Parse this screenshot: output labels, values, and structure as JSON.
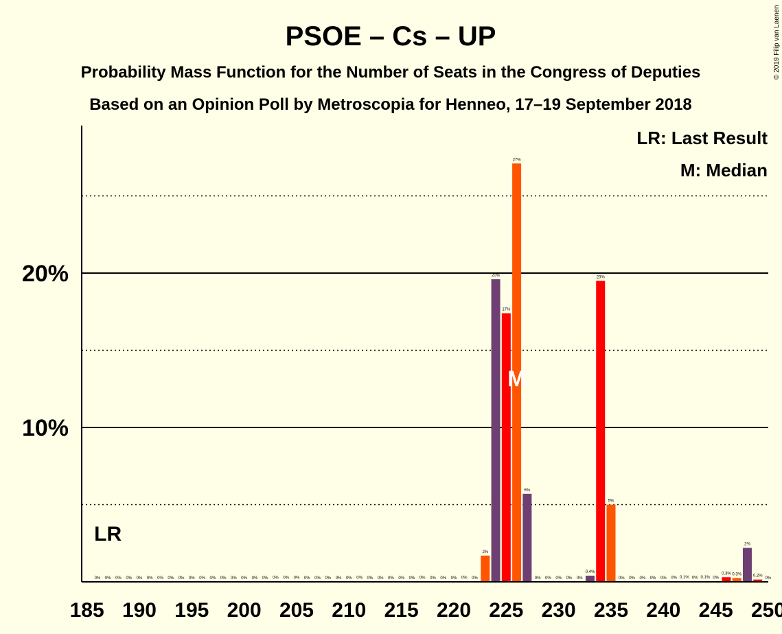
{
  "chart_data": {
    "type": "bar",
    "title": "PSOE – Cs – UP",
    "subtitle1": "Probability Mass Function for the Number of Seats in the Congress of Deputies",
    "subtitle2": "Based on an Opinion Poll by Metroscopia for Henneo, 17–19 September 2018",
    "copyright": "© 2019 Filip van Laenen",
    "legend": {
      "last_result": "LR: Last Result",
      "median": "M: Median"
    },
    "last_result_label": "LR",
    "last_result_seat": 187,
    "median_label": "M",
    "median_seat": 226,
    "xlim": [
      185,
      250
    ],
    "xticks": [
      185,
      190,
      195,
      200,
      205,
      210,
      215,
      220,
      225,
      230,
      235,
      240,
      245,
      250
    ],
    "ylim": [
      0,
      28
    ],
    "yticks": [
      {
        "value": 10,
        "label": "10%"
      },
      {
        "value": 20,
        "label": "20%"
      }
    ],
    "dotted_gridlines": [
      5,
      15,
      25
    ],
    "colors": {
      "psoe": "#FF0000",
      "cs": "#FF5500",
      "up": "#6E3F73",
      "background": "#FFFEE6"
    },
    "bars": [
      {
        "seat": 186,
        "value": 0,
        "label": "0%",
        "party": "psoe"
      },
      {
        "seat": 187,
        "value": 0,
        "label": "0%",
        "party": "cs"
      },
      {
        "seat": 188,
        "value": 0,
        "label": "0%",
        "party": "up"
      },
      {
        "seat": 189,
        "value": 0,
        "label": "0%",
        "party": "psoe"
      },
      {
        "seat": 190,
        "value": 0,
        "label": "0%",
        "party": "cs"
      },
      {
        "seat": 191,
        "value": 0,
        "label": "0%",
        "party": "up"
      },
      {
        "seat": 192,
        "value": 0,
        "label": "0%",
        "party": "psoe"
      },
      {
        "seat": 193,
        "value": 0,
        "label": "0%",
        "party": "cs"
      },
      {
        "seat": 194,
        "value": 0,
        "label": "0%",
        "party": "up"
      },
      {
        "seat": 195,
        "value": 0,
        "label": "0%",
        "party": "psoe"
      },
      {
        "seat": 196,
        "value": 0,
        "label": "0%",
        "party": "cs"
      },
      {
        "seat": 197,
        "value": 0,
        "label": "0%",
        "party": "up"
      },
      {
        "seat": 198,
        "value": 0,
        "label": "0%",
        "party": "psoe"
      },
      {
        "seat": 199,
        "value": 0,
        "label": "0%",
        "party": "cs"
      },
      {
        "seat": 200,
        "value": 0,
        "label": "0%",
        "party": "up"
      },
      {
        "seat": 201,
        "value": 0,
        "label": "0%",
        "party": "psoe"
      },
      {
        "seat": 202,
        "value": 0,
        "label": "0%",
        "party": "cs"
      },
      {
        "seat": 203,
        "value": 0.02,
        "label": "0%",
        "party": "up"
      },
      {
        "seat": 204,
        "value": 0.02,
        "label": "0%",
        "party": "psoe"
      },
      {
        "seat": 205,
        "value": 0.02,
        "label": "0%",
        "party": "cs"
      },
      {
        "seat": 206,
        "value": 0,
        "label": "0%",
        "party": "up"
      },
      {
        "seat": 207,
        "value": 0,
        "label": "0%",
        "party": "psoe"
      },
      {
        "seat": 208,
        "value": 0,
        "label": "0%",
        "party": "cs"
      },
      {
        "seat": 209,
        "value": 0,
        "label": "0%",
        "party": "up"
      },
      {
        "seat": 210,
        "value": 0,
        "label": "0%",
        "party": "psoe"
      },
      {
        "seat": 211,
        "value": 0.02,
        "label": "0%",
        "party": "cs"
      },
      {
        "seat": 212,
        "value": 0,
        "label": "0%",
        "party": "up"
      },
      {
        "seat": 213,
        "value": 0,
        "label": "0%",
        "party": "psoe"
      },
      {
        "seat": 214,
        "value": 0,
        "label": "0%",
        "party": "cs"
      },
      {
        "seat": 215,
        "value": 0,
        "label": "0%",
        "party": "up"
      },
      {
        "seat": 216,
        "value": 0,
        "label": "0%",
        "party": "psoe"
      },
      {
        "seat": 217,
        "value": 0.02,
        "label": "0%",
        "party": "cs"
      },
      {
        "seat": 218,
        "value": 0,
        "label": "0%",
        "party": "up"
      },
      {
        "seat": 219,
        "value": 0,
        "label": "0%",
        "party": "psoe"
      },
      {
        "seat": 220,
        "value": 0,
        "label": "0%",
        "party": "cs"
      },
      {
        "seat": 221,
        "value": 0.02,
        "label": "0%",
        "party": "up"
      },
      {
        "seat": 222,
        "value": 0,
        "label": "0%",
        "party": "psoe"
      },
      {
        "seat": 223,
        "value": 1.7,
        "label": "2%",
        "party": "cs"
      },
      {
        "seat": 224,
        "value": 19.6,
        "label": "20%",
        "party": "up"
      },
      {
        "seat": 225,
        "value": 17.4,
        "label": "17%",
        "party": "psoe"
      },
      {
        "seat": 226,
        "value": 27.1,
        "label": "27%",
        "party": "cs"
      },
      {
        "seat": 227,
        "value": 5.7,
        "label": "6%",
        "party": "up"
      },
      {
        "seat": 228,
        "value": 0,
        "label": "0%",
        "party": "psoe"
      },
      {
        "seat": 229,
        "value": 0,
        "label": "0%",
        "party": "cs"
      },
      {
        "seat": 230,
        "value": 0,
        "label": "0%",
        "party": "up"
      },
      {
        "seat": 231,
        "value": 0,
        "label": "0%",
        "party": "psoe"
      },
      {
        "seat": 232,
        "value": 0,
        "label": "0%",
        "party": "cs"
      },
      {
        "seat": 233,
        "value": 0.4,
        "label": "0.4%",
        "party": "up"
      },
      {
        "seat": 234,
        "value": 19.5,
        "label": "20%",
        "party": "psoe"
      },
      {
        "seat": 235,
        "value": 5.0,
        "label": "5%",
        "party": "cs"
      },
      {
        "seat": 236,
        "value": 0,
        "label": "0%",
        "party": "up"
      },
      {
        "seat": 237,
        "value": 0,
        "label": "0%",
        "party": "psoe"
      },
      {
        "seat": 238,
        "value": 0,
        "label": "0%",
        "party": "cs"
      },
      {
        "seat": 239,
        "value": 0,
        "label": "0%",
        "party": "up"
      },
      {
        "seat": 240,
        "value": 0,
        "label": "0%",
        "party": "psoe"
      },
      {
        "seat": 241,
        "value": 0.03,
        "label": "0%",
        "party": "cs"
      },
      {
        "seat": 242,
        "value": 0.05,
        "label": "0.1%",
        "party": "up"
      },
      {
        "seat": 243,
        "value": 0.02,
        "label": "0%",
        "party": "psoe"
      },
      {
        "seat": 244,
        "value": 0.05,
        "label": "0.1%",
        "party": "cs"
      },
      {
        "seat": 245,
        "value": 0.02,
        "label": "0%",
        "party": "up"
      },
      {
        "seat": 246,
        "value": 0.3,
        "label": "0.3%",
        "party": "psoe"
      },
      {
        "seat": 247,
        "value": 0.25,
        "label": "0.3%",
        "party": "cs"
      },
      {
        "seat": 248,
        "value": 2.2,
        "label": "2%",
        "party": "up"
      },
      {
        "seat": 249,
        "value": 0.15,
        "label": "0.2%",
        "party": "psoe"
      },
      {
        "seat": 250,
        "value": 0,
        "label": "0%",
        "party": "cs"
      }
    ]
  }
}
